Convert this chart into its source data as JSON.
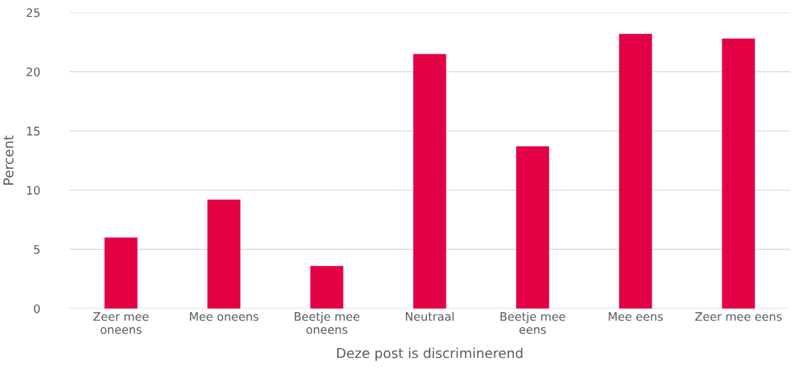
{
  "chart_data": {
    "type": "bar",
    "xlabel": "Deze post is discriminerend",
    "ylabel": "Percent",
    "categories": [
      "Zeer mee\noneens",
      "Mee oneens",
      "Beetje mee\noneens",
      "Neutraal",
      "Beetje mee\neens",
      "Mee eens",
      "Zeer mee eens"
    ],
    "values": [
      6.0,
      9.2,
      3.6,
      21.5,
      13.7,
      23.2,
      22.8
    ],
    "color": "#e30045",
    "ylim": [
      0,
      25
    ],
    "yticks": [
      0,
      5,
      10,
      15,
      20,
      25
    ],
    "grid": "y"
  }
}
